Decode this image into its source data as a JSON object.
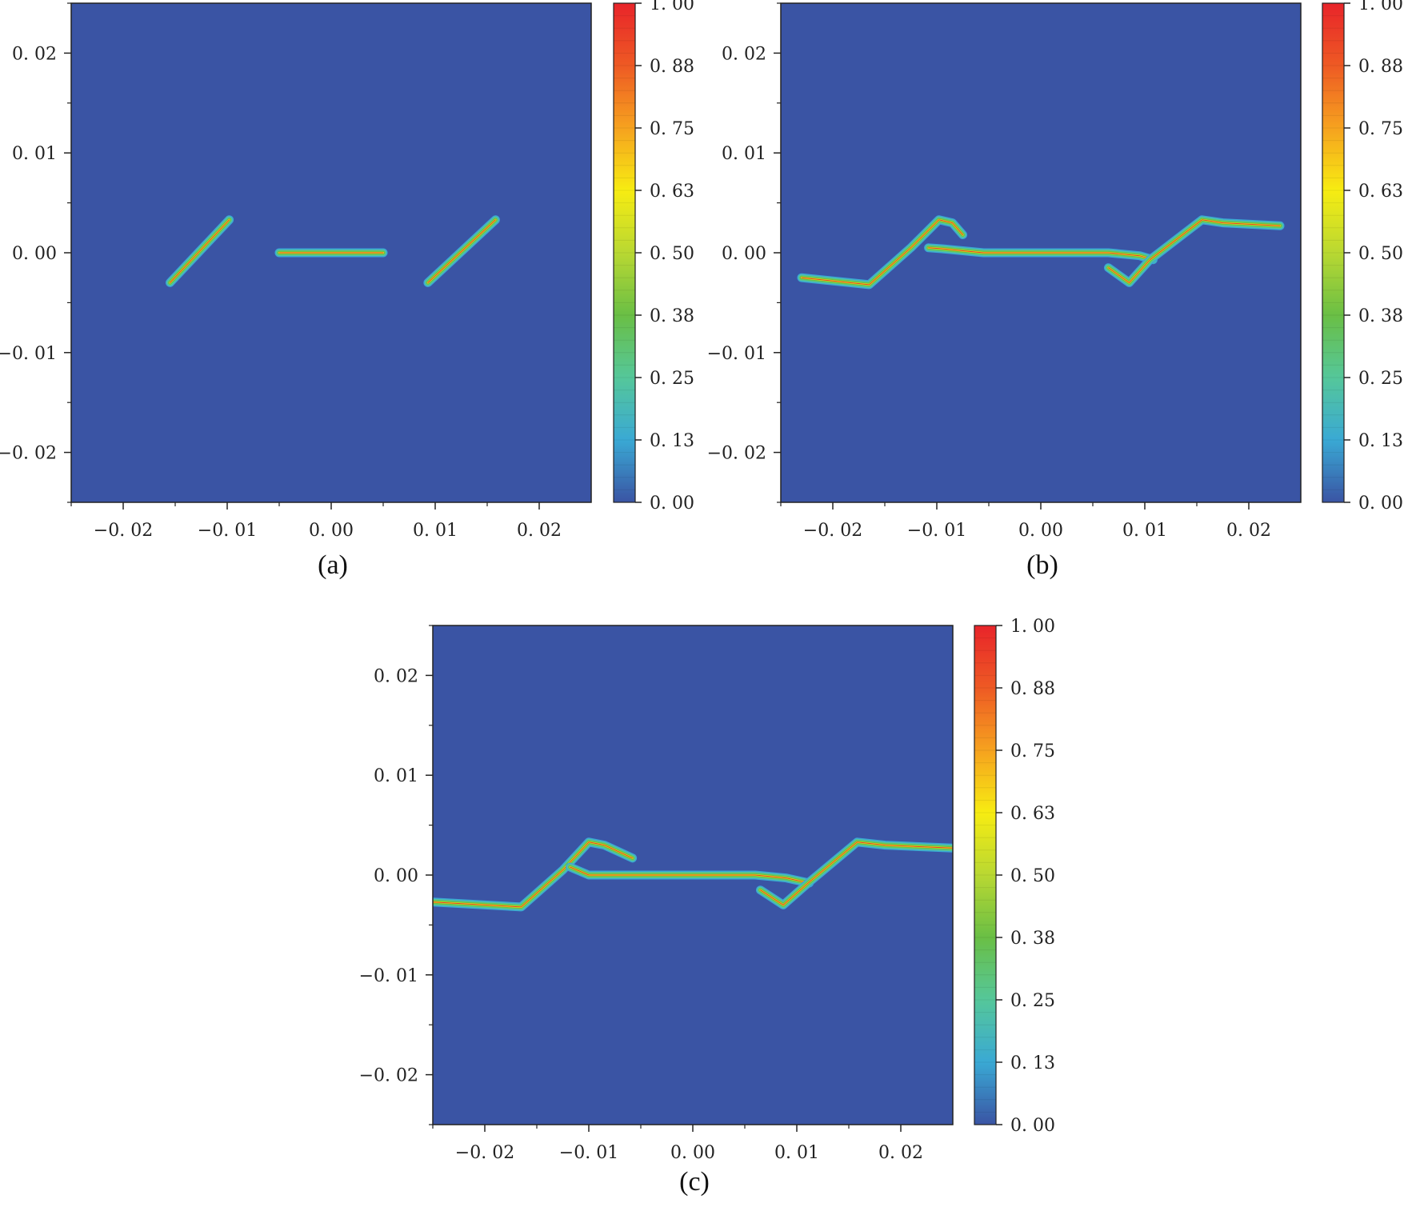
{
  "figure": {
    "panel_background": "#3a54a4",
    "crack_colormap": [
      "#3a54a4",
      "#3aa9d4",
      "#55c79a",
      "#6abf45",
      "#b9d832",
      "#f7ec12",
      "#f6a21f",
      "#ee5a24",
      "#e8242a"
    ]
  },
  "chart_data": [
    {
      "id": "a",
      "type": "heatmap",
      "caption": "(a)",
      "xlim": [
        -0.025,
        0.025
      ],
      "ylim": [
        -0.025,
        0.025
      ],
      "xticks": [
        -0.02,
        -0.01,
        0.0,
        0.01,
        0.02
      ],
      "xtick_labels": [
        "−0. 02",
        "−0. 01",
        "0. 00",
        "0. 01",
        "0. 02"
      ],
      "yticks": [
        0.02,
        0.01,
        0.0,
        -0.01,
        -0.02
      ],
      "ytick_labels": [
        "0. 02",
        "0. 01",
        "0. 00",
        "−0. 01",
        "−0. 02"
      ],
      "colorbar": {
        "range": [
          0.0,
          1.0
        ],
        "ticks": [
          1.0,
          0.875,
          0.75,
          0.625,
          0.5,
          0.375,
          0.25,
          0.125,
          0.0
        ],
        "tick_labels": [
          "1. 00",
          "0. 88",
          "0. 75",
          "0. 63",
          "0. 50",
          "0. 38",
          "0. 25",
          "0. 13",
          "0. 00"
        ]
      },
      "cracks": [
        {
          "name": "left-inclined-crack",
          "points": [
            [
              -0.0155,
              -0.003
            ],
            [
              -0.0098,
              0.0033
            ]
          ]
        },
        {
          "name": "center-horizontal-crack",
          "points": [
            [
              -0.005,
              0.0
            ],
            [
              0.005,
              0.0
            ]
          ]
        },
        {
          "name": "right-inclined-crack",
          "points": [
            [
              0.0093,
              -0.003
            ],
            [
              0.0158,
              0.0033
            ]
          ]
        }
      ]
    },
    {
      "id": "b",
      "type": "heatmap",
      "caption": "(b)",
      "xlim": [
        -0.025,
        0.025
      ],
      "ylim": [
        -0.025,
        0.025
      ],
      "xticks": [
        -0.02,
        -0.01,
        0.0,
        0.01,
        0.02
      ],
      "xtick_labels": [
        "−0. 02",
        "−0. 01",
        "0. 00",
        "0. 01",
        "0. 02"
      ],
      "yticks": [
        0.02,
        0.01,
        0.0,
        -0.01,
        -0.02
      ],
      "ytick_labels": [
        "0. 02",
        "0. 01",
        "0. 00",
        "−0. 01",
        "−0. 02"
      ],
      "colorbar": {
        "range": [
          0.0,
          1.0
        ],
        "ticks": [
          1.0,
          0.875,
          0.75,
          0.625,
          0.5,
          0.375,
          0.25,
          0.125,
          0.0
        ],
        "tick_labels": [
          "1. 00",
          "0. 88",
          "0. 75",
          "0. 63",
          "0. 50",
          "0. 38",
          "0. 25",
          "0. 13",
          "0. 00"
        ]
      },
      "cracks": [
        {
          "name": "left-branch-crack",
          "points": [
            [
              -0.023,
              -0.0025
            ],
            [
              -0.0165,
              -0.0032
            ],
            [
              -0.0125,
              0.0005
            ],
            [
              -0.0098,
              0.0033
            ],
            [
              -0.0085,
              0.003
            ],
            [
              -0.0075,
              0.0018
            ]
          ]
        },
        {
          "name": "left-wing-crack",
          "points": [
            [
              -0.0108,
              0.0005
            ],
            [
              -0.0095,
              0.0004
            ],
            [
              -0.0055,
              0.0
            ],
            [
              0.0065,
              0.0
            ],
            [
              0.0095,
              -0.0003
            ],
            [
              0.0108,
              -0.0007
            ]
          ]
        },
        {
          "name": "right-branch-crack",
          "points": [
            [
              0.0065,
              -0.0015
            ],
            [
              0.0085,
              -0.003
            ],
            [
              0.0105,
              -0.0007
            ],
            [
              0.0155,
              0.0033
            ],
            [
              0.0175,
              0.003
            ],
            [
              0.023,
              0.0027
            ]
          ]
        }
      ]
    },
    {
      "id": "c",
      "type": "heatmap",
      "caption": "(c)",
      "xlim": [
        -0.025,
        0.025
      ],
      "ylim": [
        -0.025,
        0.025
      ],
      "xticks": [
        -0.02,
        -0.01,
        0.0,
        0.01,
        0.02
      ],
      "xtick_labels": [
        "−0. 02",
        "−0. 01",
        "0. 00",
        "0. 01",
        "0. 02"
      ],
      "yticks": [
        0.02,
        0.01,
        0.0,
        -0.01,
        -0.02
      ],
      "ytick_labels": [
        "0. 02",
        "0. 01",
        "0. 00",
        "−0. 01",
        "−0. 02"
      ],
      "colorbar": {
        "range": [
          0.0,
          1.0
        ],
        "ticks": [
          1.0,
          0.875,
          0.75,
          0.625,
          0.5,
          0.375,
          0.25,
          0.125,
          0.0
        ],
        "tick_labels": [
          "1. 00",
          "0. 88",
          "0. 75",
          "0. 63",
          "0. 50",
          "0. 38",
          "0. 25",
          "0. 13",
          "0. 00"
        ]
      },
      "cracks": [
        {
          "name": "left-branch-crack",
          "points": [
            [
              -0.025,
              -0.0027
            ],
            [
              -0.0165,
              -0.0032
            ],
            [
              -0.0125,
              0.0005
            ],
            [
              -0.01,
              0.0033
            ],
            [
              -0.0085,
              0.003
            ],
            [
              -0.0058,
              0.0017
            ]
          ]
        },
        {
          "name": "left-wing-crack",
          "points": [
            [
              -0.0118,
              0.0008
            ],
            [
              -0.01,
              0.0
            ],
            [
              -0.006,
              0.0
            ],
            [
              0.006,
              0.0
            ],
            [
              0.009,
              -0.0003
            ],
            [
              0.0112,
              -0.0008
            ]
          ]
        },
        {
          "name": "right-branch-crack",
          "points": [
            [
              0.0065,
              -0.0015
            ],
            [
              0.0087,
              -0.003
            ],
            [
              0.0112,
              -0.0007
            ],
            [
              0.0158,
              0.0033
            ],
            [
              0.0185,
              0.003
            ],
            [
              0.025,
              0.0027
            ]
          ]
        }
      ]
    }
  ]
}
